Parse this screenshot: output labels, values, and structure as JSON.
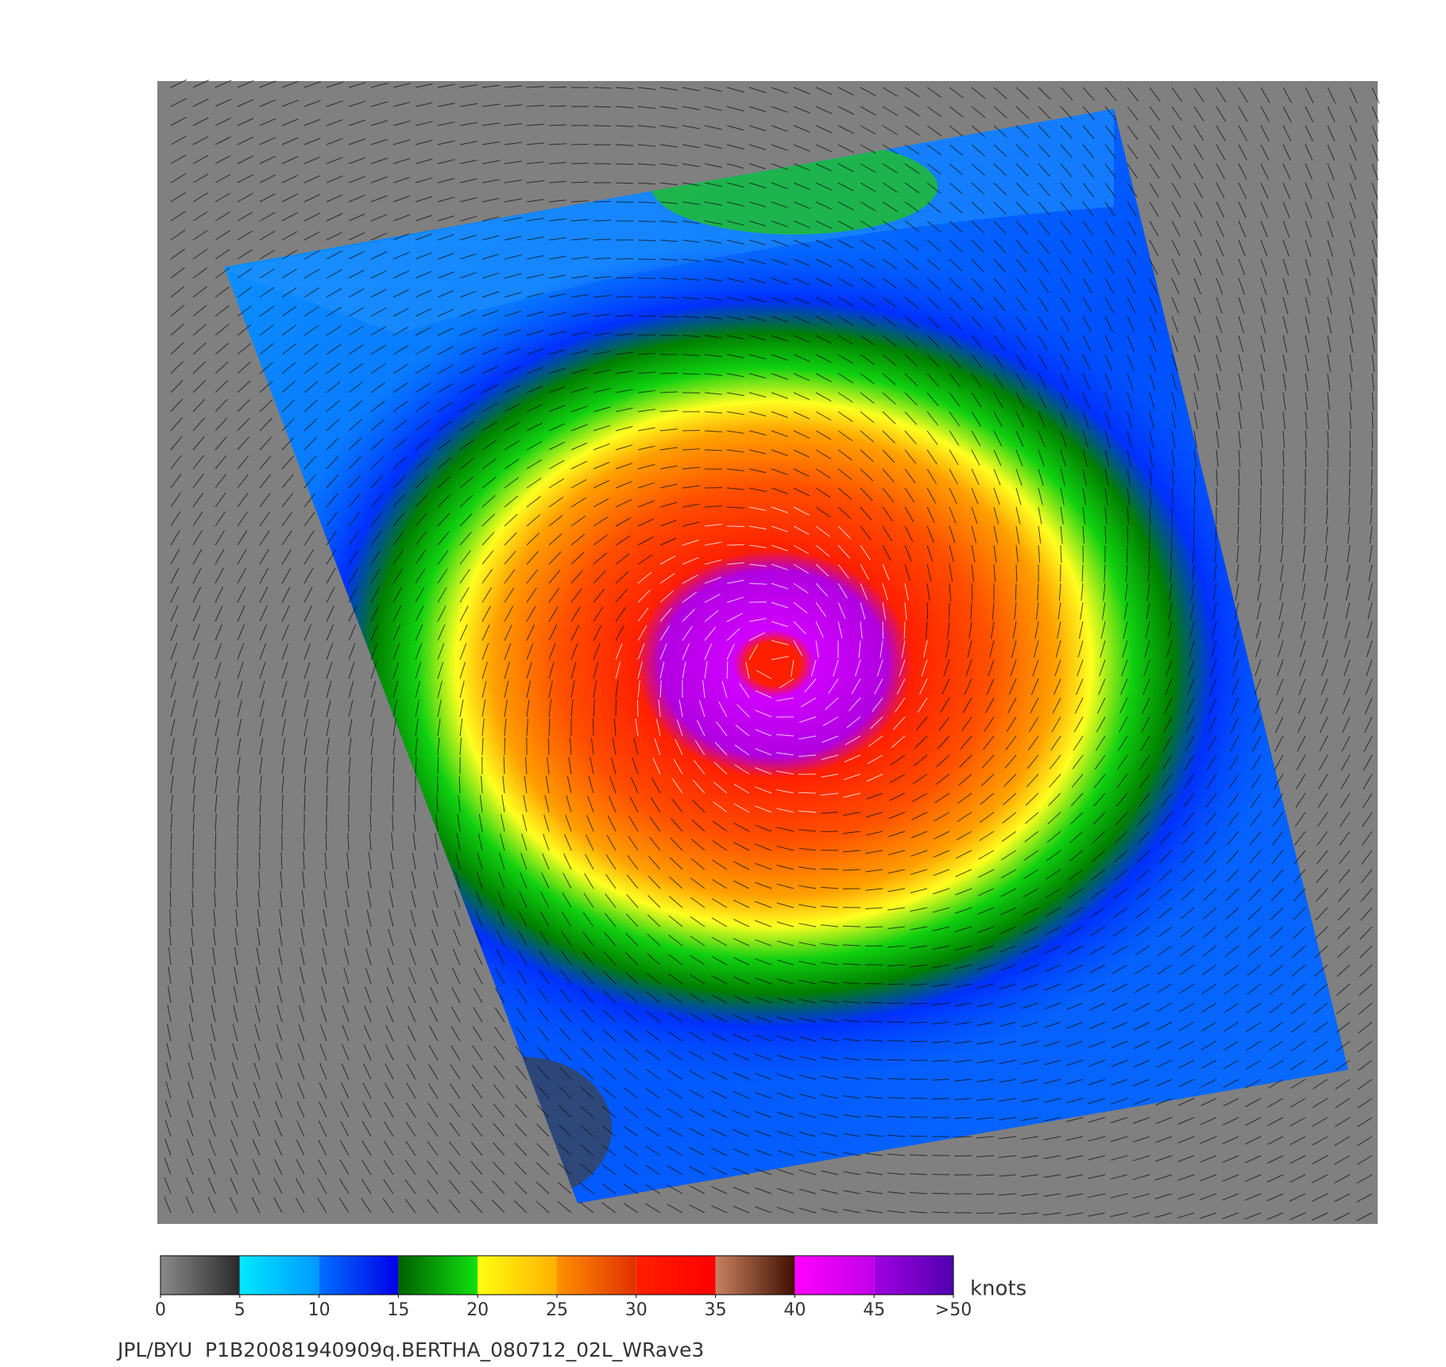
{
  "colorbar": {
    "ticks": [
      0,
      5,
      10,
      15,
      20,
      25,
      30,
      35,
      40,
      45,
      {
        "value": 50,
        "label": ">50"
      }
    ],
    "colors": [
      [
        "#8a8a8a",
        "#2a2a2a"
      ],
      [
        "#00e8ff",
        "#0098ff"
      ],
      [
        "#0070ff",
        "#0000e8"
      ],
      [
        "#006000",
        "#10e010"
      ],
      [
        "#ffff10",
        "#ffb000"
      ],
      [
        "#ff9000",
        "#e03000"
      ],
      [
        "#ff2000",
        "#ff0000"
      ],
      [
        "#c88060",
        "#401000"
      ],
      [
        "#ff00ff",
        "#c000e8"
      ],
      [
        "#a000e0",
        "#5000b0"
      ]
    ],
    "unit": "knots"
  },
  "footer": "JPL/BYU  P1B20081940909q.BERTHA_080712_02L_WRave3"
}
